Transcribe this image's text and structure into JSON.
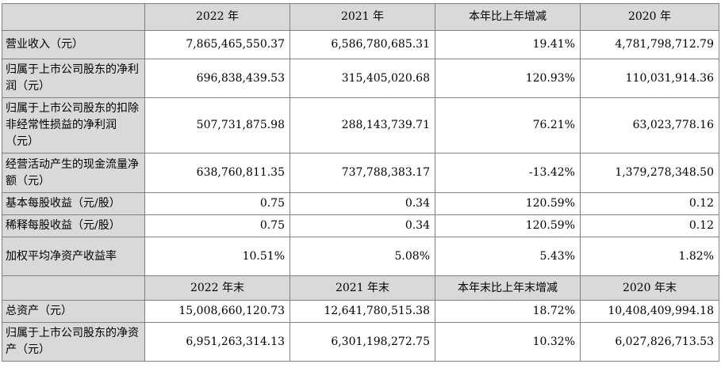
{
  "header1": [
    "2022 年",
    "2021 年",
    "本年比上年增减",
    "2020 年"
  ],
  "rows1": [
    {
      "label": "营业收入（元）",
      "values": [
        "7,865,465,550.37",
        "6,586,780,685.31",
        "19.41%",
        "4,781,798,712.79"
      ]
    },
    {
      "label": "归属于上市公司股东的净利润（元）",
      "values": [
        "696,838,439.53",
        "315,405,020.68",
        "120.93%",
        "110,031,914.36"
      ]
    },
    {
      "label": "归属于上市公司股东的扣除非经常性损益的净利润（元）",
      "values": [
        "507,731,875.98",
        "288,143,739.71",
        "76.21%",
        "63,023,778.16"
      ]
    },
    {
      "label": "经营活动产生的现金流量净额（元）",
      "values": [
        "638,760,811.35",
        "737,788,383.17",
        "-13.42%",
        "1,379,278,348.50"
      ]
    },
    {
      "label": "基本每股收益（元/股）",
      "values": [
        "0.75",
        "0.34",
        "120.59%",
        "0.12"
      ]
    },
    {
      "label": "稀释每股收益（元/股）",
      "values": [
        "0.75",
        "0.34",
        "120.59%",
        "0.12"
      ]
    },
    {
      "label": "加权平均净资产收益率",
      "values": [
        "10.51%",
        "5.08%",
        "5.43%",
        "1.82%"
      ]
    }
  ],
  "header2": [
    "2022 年末",
    "2021 年末",
    "本年末比上年末增减",
    "2020 年末"
  ],
  "rows2": [
    {
      "label": "总资产（元）",
      "values": [
        "15,008,660,120.73",
        "12,641,780,515.38",
        "18.72%",
        "10,408,409,994.18"
      ]
    },
    {
      "label": "归属于上市公司股东的净资产（元）",
      "values": [
        "6,951,263,314.13",
        "6,301,198,272.75",
        "10.32%",
        "6,027,826,713.53"
      ]
    }
  ]
}
